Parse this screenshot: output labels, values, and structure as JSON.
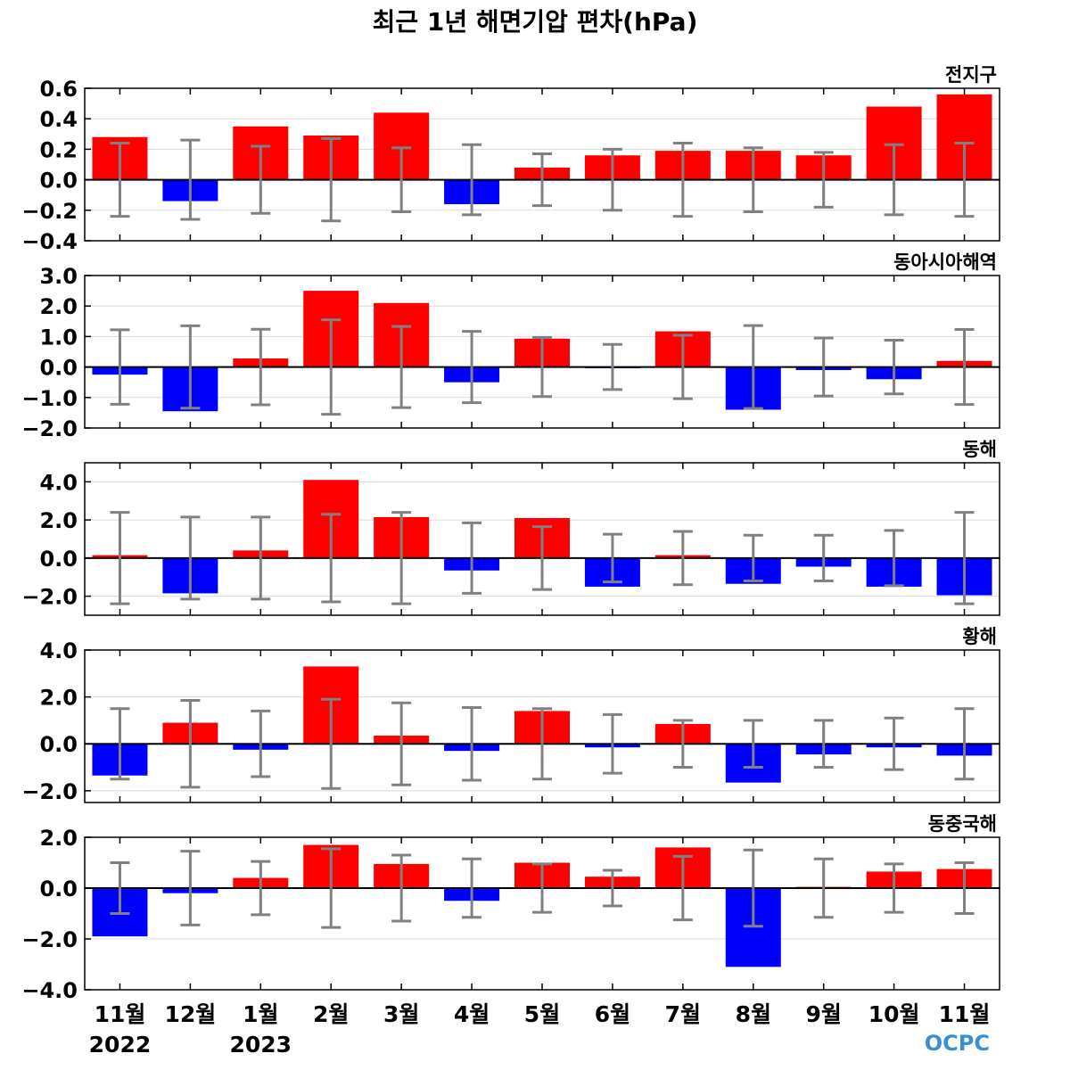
{
  "title": "최근 1년 해면기압 편차(hPa)",
  "months": [
    "11월",
    "12월",
    "1월",
    "2월",
    "3월",
    "4월",
    "5월",
    "6월",
    "7월",
    "8월",
    "9월",
    "10월",
    "11월"
  ],
  "year_labels": [
    {
      "text": "2022",
      "index": 0
    },
    {
      "text": "2023",
      "index": 2
    }
  ],
  "logo_text": "OCPC",
  "colors": {
    "positive": "#ff0000",
    "negative": "#0000ff",
    "errorbar": "#808080",
    "zero_line": "#000000",
    "grid": "#d9d9d9"
  },
  "chart_data": [
    {
      "type": "bar",
      "title": "전지구",
      "unit": "hPa",
      "ylim": [
        -0.4,
        0.6
      ],
      "yticks": [
        -0.4,
        -0.2,
        0.0,
        0.2,
        0.4,
        0.6
      ],
      "ytick_labels": [
        "−0.4",
        "−0.2",
        "0.0",
        "0.2",
        "0.4",
        "0.6"
      ],
      "values": [
        0.28,
        -0.14,
        0.35,
        0.29,
        0.44,
        -0.16,
        0.08,
        0.16,
        0.19,
        0.19,
        0.16,
        0.48,
        0.56
      ],
      "errorbar_half_range": [
        0.24,
        0.26,
        0.22,
        0.27,
        0.21,
        0.23,
        0.17,
        0.2,
        0.24,
        0.21,
        0.18,
        0.23,
        0.24
      ]
    },
    {
      "type": "bar",
      "title": "동아시아해역",
      "unit": "hPa",
      "ylim": [
        -2.0,
        3.0
      ],
      "yticks": [
        -2.0,
        -1.0,
        0.0,
        1.0,
        2.0,
        3.0
      ],
      "ytick_labels": [
        "−2.0",
        "−1.0",
        "0.0",
        "1.0",
        "2.0",
        "3.0"
      ],
      "values": [
        -0.25,
        -1.45,
        0.28,
        2.5,
        2.1,
        -0.5,
        0.93,
        -0.04,
        1.17,
        -1.4,
        -0.1,
        -0.4,
        0.2
      ],
      "errorbar_half_range": [
        1.22,
        1.35,
        1.24,
        1.55,
        1.33,
        1.17,
        0.97,
        0.74,
        1.04,
        1.36,
        0.95,
        0.88,
        1.23
      ]
    },
    {
      "type": "bar",
      "title": "동해",
      "unit": "hPa",
      "ylim": [
        -3.0,
        5.0
      ],
      "yticks": [
        -2.0,
        0.0,
        2.0,
        4.0
      ],
      "ytick_labels": [
        "−2.0",
        "0.0",
        "2.0",
        "4.0"
      ],
      "values": [
        0.15,
        -1.85,
        0.4,
        4.1,
        2.15,
        -0.65,
        2.1,
        -1.5,
        0.15,
        -1.35,
        -0.45,
        -1.5,
        -1.95
      ],
      "errorbar_half_range": [
        2.4,
        2.15,
        2.15,
        2.3,
        2.4,
        1.85,
        1.65,
        1.25,
        1.4,
        1.2,
        1.2,
        1.45,
        2.4
      ]
    },
    {
      "type": "bar",
      "title": "황해",
      "unit": "hPa",
      "ylim": [
        -2.5,
        4.0
      ],
      "yticks": [
        -2.0,
        0.0,
        2.0,
        4.0
      ],
      "ytick_labels": [
        "−2.0",
        "0.0",
        "2.0",
        "4.0"
      ],
      "values": [
        -1.35,
        0.9,
        -0.25,
        3.3,
        0.35,
        -0.3,
        1.4,
        -0.15,
        0.85,
        -1.65,
        -0.45,
        -0.15,
        -0.5
      ],
      "errorbar_half_range": [
        1.5,
        1.85,
        1.4,
        1.9,
        1.75,
        1.55,
        1.5,
        1.25,
        1.0,
        1.0,
        1.0,
        1.1,
        1.5
      ]
    },
    {
      "type": "bar",
      "title": "동중국해",
      "unit": "hPa",
      "ylim": [
        -4.0,
        2.0
      ],
      "yticks": [
        -4.0,
        -2.0,
        0.0,
        2.0
      ],
      "ytick_labels": [
        "−4.0",
        "−2.0",
        "0.0",
        "2.0"
      ],
      "values": [
        -1.9,
        -0.2,
        0.4,
        1.7,
        0.95,
        -0.5,
        1.0,
        0.45,
        1.6,
        -3.1,
        0.05,
        0.65,
        0.75
      ],
      "errorbar_half_range": [
        1.0,
        1.45,
        1.05,
        1.55,
        1.3,
        1.15,
        0.95,
        0.7,
        1.25,
        1.5,
        1.15,
        0.95,
        1.0
      ]
    }
  ]
}
